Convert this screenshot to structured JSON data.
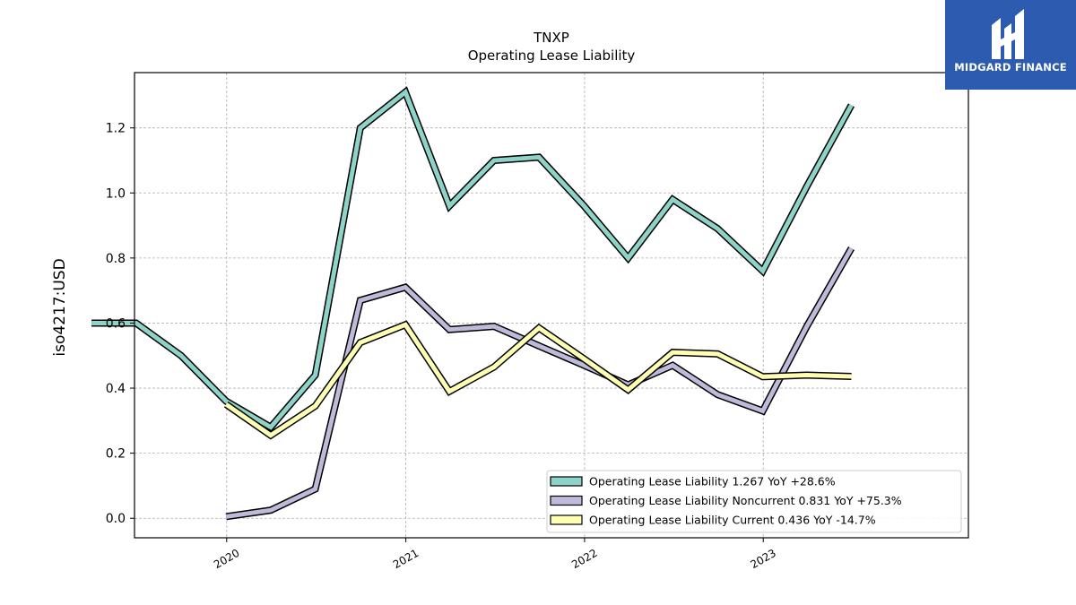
{
  "chart_data": {
    "type": "line",
    "title": "TNXP",
    "subtitle": "Operating Lease Liability",
    "ylabel": "iso4217:USD",
    "xlabel": "",
    "ylim": [
      -0.06,
      1.37
    ],
    "yticks": [
      0.0,
      0.2,
      0.4,
      0.6,
      0.8,
      1.0,
      1.2
    ],
    "ytick_labels": [
      "0.0",
      "0.2",
      "0.4",
      "0.6",
      "0.8",
      "1.0",
      "1.2"
    ],
    "xticks": [
      "2020",
      "2021",
      "2022",
      "2023"
    ],
    "grid": true,
    "legend_position": "bottom-right",
    "series": [
      {
        "name": "Operating Lease Liability",
        "legend_label": "Operating Lease Liability  1.267 YoY +28.6%",
        "color": "#8dd3c7",
        "points": [
          [
            "2019-03-31",
            0.6
          ],
          [
            "2019-06-30",
            0.6
          ],
          [
            "2019-09-30",
            0.5
          ],
          [
            "2019-12-31",
            0.36
          ],
          [
            "2020-03-31",
            0.28
          ],
          [
            "2020-06-30",
            0.44
          ],
          [
            "2020-09-30",
            1.2
          ],
          [
            "2020-12-31",
            1.31
          ],
          [
            "2021-03-31",
            0.96
          ],
          [
            "2021-06-30",
            1.1
          ],
          [
            "2021-09-30",
            1.11
          ],
          [
            "2021-12-31",
            0.96
          ],
          [
            "2022-03-31",
            0.8
          ],
          [
            "2022-06-30",
            0.98
          ],
          [
            "2022-09-30",
            0.89
          ],
          [
            "2022-12-31",
            0.76
          ],
          [
            "2023-03-31",
            1.02
          ],
          [
            "2023-06-30",
            1.27
          ]
        ]
      },
      {
        "name": "Operating Lease Liability Noncurrent",
        "legend_label": "Operating Lease Liability Noncurrent  0.831 YoY +75.3%",
        "color": "#bebada",
        "points": [
          [
            "2019-12-31",
            0.005
          ],
          [
            "2020-03-31",
            0.025
          ],
          [
            "2020-06-30",
            0.09
          ],
          [
            "2020-09-30",
            0.67
          ],
          [
            "2020-12-31",
            0.71
          ],
          [
            "2021-03-31",
            0.58
          ],
          [
            "2021-06-30",
            0.59
          ],
          [
            "2021-09-30",
            0.53
          ],
          [
            "2021-12-31",
            0.47
          ],
          [
            "2022-03-31",
            0.41
          ],
          [
            "2022-06-30",
            0.47
          ],
          [
            "2022-09-30",
            0.38
          ],
          [
            "2022-12-31",
            0.33
          ],
          [
            "2023-03-31",
            0.59
          ],
          [
            "2023-06-30",
            0.83
          ]
        ]
      },
      {
        "name": "Operating Lease Liability Current",
        "legend_label": "Operating Lease Liability Current  0.436 YoY -14.7%",
        "color": "#ffffb3",
        "points": [
          [
            "2019-12-31",
            0.35
          ],
          [
            "2020-03-31",
            0.255
          ],
          [
            "2020-06-30",
            0.345
          ],
          [
            "2020-09-30",
            0.54
          ],
          [
            "2020-12-31",
            0.595
          ],
          [
            "2021-03-31",
            0.39
          ],
          [
            "2021-06-30",
            0.465
          ],
          [
            "2021-09-30",
            0.585
          ],
          [
            "2021-12-31",
            0.49
          ],
          [
            "2022-03-31",
            0.395
          ],
          [
            "2022-06-30",
            0.51
          ],
          [
            "2022-09-30",
            0.505
          ],
          [
            "2022-12-31",
            0.435
          ],
          [
            "2023-03-31",
            0.44
          ],
          [
            "2023-06-30",
            0.436
          ]
        ]
      }
    ]
  },
  "logo": {
    "text": "MIDGARD FINANCE",
    "color": "#2d5bb0"
  }
}
